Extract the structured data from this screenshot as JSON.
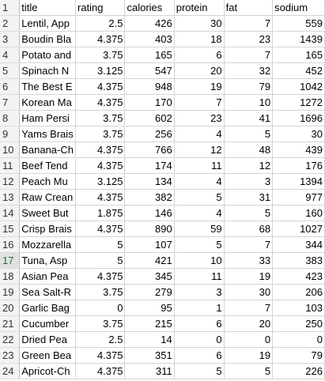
{
  "sheet": {
    "header_row_number": "1",
    "headers": [
      "title",
      "rating",
      "calories",
      "protein",
      "fat",
      "sodium"
    ],
    "active_row": "17",
    "rows": [
      {
        "n": "2",
        "title": "Lentil, App",
        "rating": "2.5",
        "calories": "426",
        "protein": "30",
        "fat": "7",
        "sodium": "559"
      },
      {
        "n": "3",
        "title": "Boudin Bla",
        "rating": "4.375",
        "calories": "403",
        "protein": "18",
        "fat": "23",
        "sodium": "1439"
      },
      {
        "n": "4",
        "title": "Potato and",
        "rating": "3.75",
        "calories": "165",
        "protein": "6",
        "fat": "7",
        "sodium": "165"
      },
      {
        "n": "5",
        "title": "Spinach N",
        "rating": "3.125",
        "calories": "547",
        "protein": "20",
        "fat": "32",
        "sodium": "452"
      },
      {
        "n": "6",
        "title": "The Best E",
        "rating": "4.375",
        "calories": "948",
        "protein": "19",
        "fat": "79",
        "sodium": "1042"
      },
      {
        "n": "7",
        "title": "Korean Ma",
        "rating": "4.375",
        "calories": "170",
        "protein": "7",
        "fat": "10",
        "sodium": "1272"
      },
      {
        "n": "8",
        "title": "Ham Persi",
        "rating": "3.75",
        "calories": "602",
        "protein": "23",
        "fat": "41",
        "sodium": "1696"
      },
      {
        "n": "9",
        "title": "Yams Brais",
        "rating": "3.75",
        "calories": "256",
        "protein": "4",
        "fat": "5",
        "sodium": "30"
      },
      {
        "n": "10",
        "title": "Banana-Ch",
        "rating": "4.375",
        "calories": "766",
        "protein": "12",
        "fat": "48",
        "sodium": "439"
      },
      {
        "n": "11",
        "title": "Beef Tend",
        "rating": "4.375",
        "calories": "174",
        "protein": "11",
        "fat": "12",
        "sodium": "176"
      },
      {
        "n": "12",
        "title": "Peach Mu",
        "rating": "3.125",
        "calories": "134",
        "protein": "4",
        "fat": "3",
        "sodium": "1394"
      },
      {
        "n": "13",
        "title": "Raw Crean",
        "rating": "4.375",
        "calories": "382",
        "protein": "5",
        "fat": "31",
        "sodium": "977"
      },
      {
        "n": "14",
        "title": "Sweet But",
        "rating": "1.875",
        "calories": "146",
        "protein": "4",
        "fat": "5",
        "sodium": "160"
      },
      {
        "n": "15",
        "title": "Crisp Brais",
        "rating": "4.375",
        "calories": "890",
        "protein": "59",
        "fat": "68",
        "sodium": "1027"
      },
      {
        "n": "16",
        "title": "Mozzarella",
        "rating": "5",
        "calories": "107",
        "protein": "5",
        "fat": "7",
        "sodium": "344"
      },
      {
        "n": "17",
        "title": "Tuna, Asp",
        "rating": "5",
        "calories": "421",
        "protein": "10",
        "fat": "33",
        "sodium": "383"
      },
      {
        "n": "18",
        "title": "Asian Pea",
        "rating": "4.375",
        "calories": "345",
        "protein": "11",
        "fat": "19",
        "sodium": "423"
      },
      {
        "n": "19",
        "title": "Sea Salt-R",
        "rating": "3.75",
        "calories": "279",
        "protein": "3",
        "fat": "30",
        "sodium": "206"
      },
      {
        "n": "20",
        "title": "Garlic Bag",
        "rating": "0",
        "calories": "95",
        "protein": "1",
        "fat": "7",
        "sodium": "103"
      },
      {
        "n": "21",
        "title": "Cucumber",
        "rating": "3.75",
        "calories": "215",
        "protein": "6",
        "fat": "20",
        "sodium": "250"
      },
      {
        "n": "22",
        "title": "Dried Pea",
        "rating": "2.5",
        "calories": "14",
        "protein": "0",
        "fat": "0",
        "sodium": "0"
      },
      {
        "n": "23",
        "title": "Green Bea",
        "rating": "4.375",
        "calories": "351",
        "protein": "6",
        "fat": "19",
        "sodium": "79"
      },
      {
        "n": "24",
        "title": "Apricot-Ch",
        "rating": "4.375",
        "calories": "311",
        "protein": "5",
        "fat": "5",
        "sodium": "226"
      }
    ]
  }
}
